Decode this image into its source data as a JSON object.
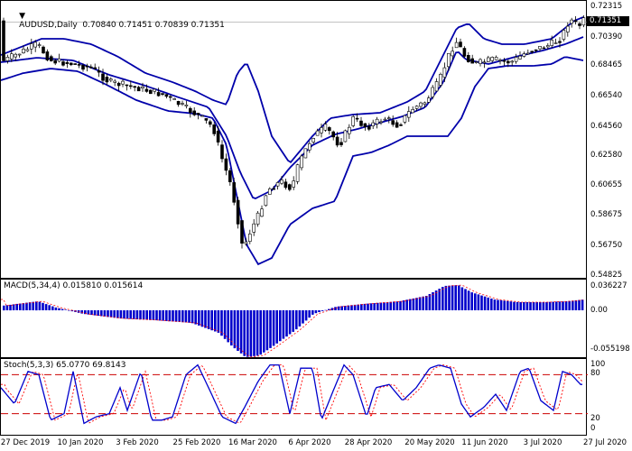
{
  "symbol_header": {
    "arrow_icon": "triangle-down-icon",
    "text": "AUDUSD,Daily  0.70840 0.71451 0.70839 0.71351"
  },
  "price_axis": {
    "labels": [
      "0.72315",
      "0.70390",
      "0.68465",
      "0.66540",
      "0.64560",
      "0.62580",
      "0.60655",
      "0.58675",
      "0.56750",
      "0.54825"
    ],
    "current_price": "0.71351"
  },
  "macd": {
    "title": "MACD(5,34,4) 0.015810 0.015614",
    "axis_labels": [
      "0.036227",
      "0.00",
      "-0.055198"
    ]
  },
  "stoch": {
    "title": "Stoch(5,3,3) 65.0770 69.8143",
    "axis_labels": [
      "100",
      "80",
      "20",
      "0"
    ],
    "levels": [
      80,
      20
    ]
  },
  "dates": [
    "27 Dec 2019",
    "10 Jan 2020",
    "3 Feb 2020",
    "25 Feb 2020",
    "16 Mar 2020",
    "6 Apr 2020",
    "28 Apr 2020",
    "20 May 2020",
    "11 Jun 2020",
    "3 Jul 2020",
    "27 Jul 2020"
  ],
  "colors": {
    "background": "#ffffff",
    "bands": "#0000aa",
    "candles": "#000000",
    "macd_hist": "#0000cc",
    "signal": "#ff0000",
    "stoch_main": "#0000cc",
    "stoch_signal": "#ff0000",
    "level_lines": "#cc0000"
  }
}
